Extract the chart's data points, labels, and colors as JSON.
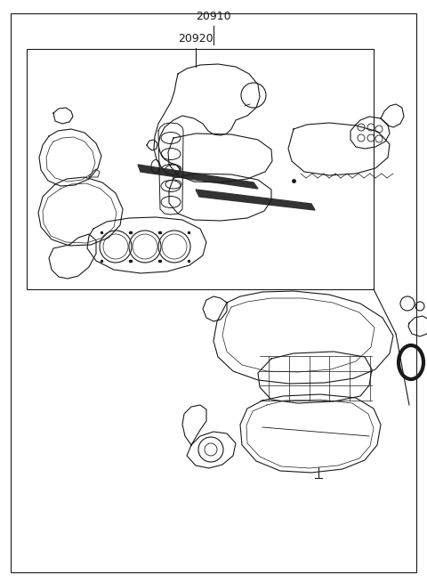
{
  "label_20910": "20910",
  "label_20920": "20920",
  "bg_color": "#ffffff",
  "line_color": "#1a1a1a",
  "font_size_labels": 9
}
